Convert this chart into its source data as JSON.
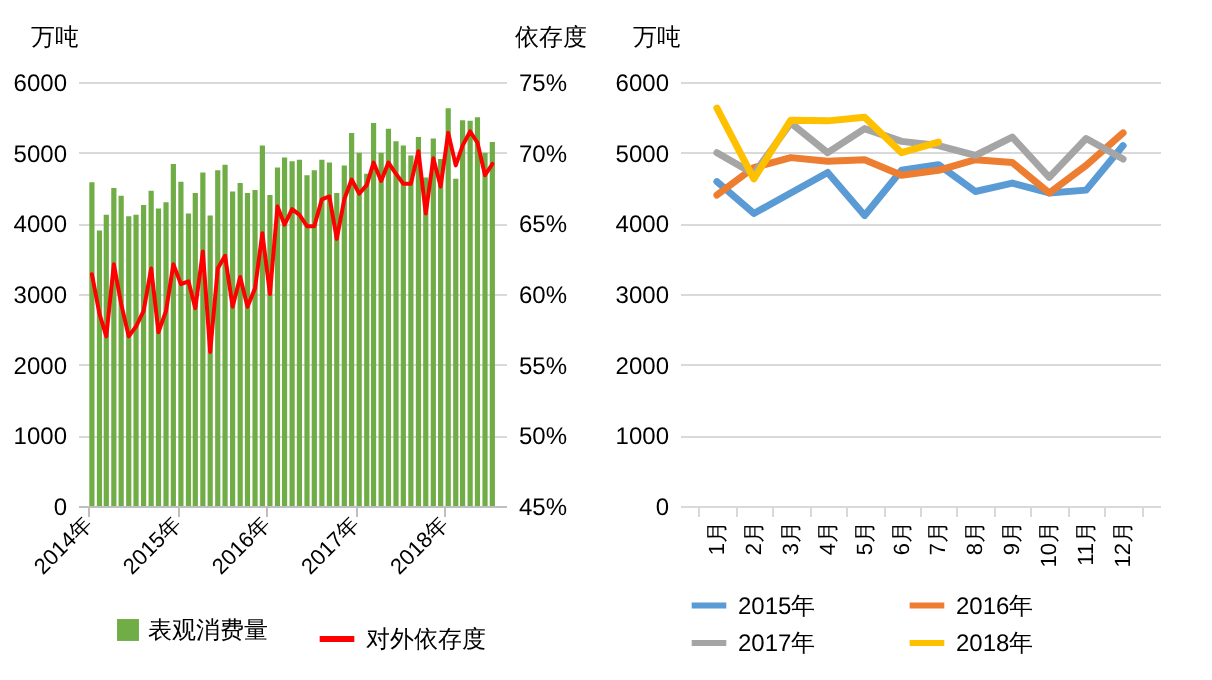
{
  "chart_data": [
    {
      "type": "bar",
      "ylabel": "万吨",
      "y2label": "依存度",
      "grid": "y",
      "legend": "bottom",
      "x": [
        "2014-01",
        "2014-02",
        "2014-03",
        "2014-04",
        "2014-05",
        "2014-06",
        "2014-07",
        "2014-08",
        "2014-09",
        "2014-10",
        "2014-11",
        "2014-12",
        "2015-01",
        "2015-02",
        "2015-03",
        "2015-04",
        "2015-05",
        "2015-06",
        "2015-07",
        "2015-08",
        "2015-09",
        "2015-10",
        "2015-11",
        "2015-12",
        "2016-01",
        "2016-02",
        "2016-03",
        "2016-04",
        "2016-05",
        "2016-06",
        "2016-07",
        "2016-08",
        "2016-09",
        "2016-10",
        "2016-11",
        "2016-12",
        "2017-01",
        "2017-02",
        "2017-03",
        "2017-04",
        "2017-05",
        "2017-06",
        "2017-07",
        "2017-08",
        "2017-09",
        "2017-10",
        "2017-11",
        "2017-12",
        "2018-01",
        "2018-02",
        "2018-03",
        "2018-04",
        "2018-05",
        "2018-06",
        "2018-07"
      ],
      "xlim": [
        "2014-01",
        "2018-08"
      ],
      "xticks": [
        {
          "value": "2014-01",
          "label": "2014年"
        },
        {
          "value": "2015-01",
          "label": "2015年"
        },
        {
          "value": "2016-01",
          "label": "2016年"
        },
        {
          "value": "2017-01",
          "label": "2017年"
        },
        {
          "value": "2018-01",
          "label": "2018年"
        }
      ],
      "ylim": [
        0,
        6000
      ],
      "yticks": [
        0,
        1000,
        2000,
        3000,
        4000,
        5000,
        6000
      ],
      "y2lim": [
        45,
        75
      ],
      "y2ticks": [
        {
          "value": 45,
          "label": "45%"
        },
        {
          "value": 50,
          "label": "50%"
        },
        {
          "value": 55,
          "label": "55%"
        },
        {
          "value": 60,
          "label": "60%"
        },
        {
          "value": 65,
          "label": "65%"
        },
        {
          "value": 70,
          "label": "70%"
        },
        {
          "value": 75,
          "label": "75%"
        }
      ],
      "series": [
        {
          "name": "表观消费量",
          "color": "#70ad47",
          "values": [
            4580,
            3900,
            4120,
            4500,
            4390,
            4100,
            4120,
            4260,
            4460,
            4210,
            4300,
            4840,
            4590,
            4140,
            4430,
            4720,
            4110,
            4750,
            4830,
            4450,
            4570,
            4430,
            4470,
            5100,
            4400,
            4790,
            4930,
            4880,
            4900,
            4680,
            4750,
            4900,
            4860,
            4430,
            4820,
            5280,
            5000,
            4700,
            5420,
            5000,
            5340,
            5160,
            5100,
            4960,
            5220,
            4650,
            5200,
            4910,
            5630,
            4630,
            5460,
            5450,
            5500,
            5000,
            5150
          ]
        },
        {
          "name": "对外依存度",
          "type": "line",
          "axis": "y2",
          "color": "#ff0000",
          "values": [
            61.4,
            58.6,
            57.0,
            62.1,
            59.3,
            57.0,
            57.7,
            58.8,
            61.8,
            57.3,
            58.8,
            62.1,
            60.7,
            60.9,
            59.0,
            63.0,
            55.9,
            61.8,
            62.7,
            59.1,
            61.2,
            59.1,
            60.4,
            64.3,
            60.0,
            66.2,
            64.9,
            66.0,
            65.6,
            64.8,
            64.8,
            66.7,
            66.9,
            63.9,
            66.7,
            68.1,
            67.1,
            67.7,
            69.3,
            68.0,
            69.3,
            68.5,
            67.8,
            67.8,
            70.1,
            65.7,
            69.6,
            67.6,
            71.4,
            69.1,
            70.5,
            71.5,
            70.7,
            68.4,
            69.2
          ]
        }
      ]
    },
    {
      "type": "line",
      "ylabel": "万吨",
      "grid": "y",
      "legend": "bottom",
      "categories": [
        "1月",
        "2月",
        "3月",
        "4月",
        "5月",
        "6月",
        "7月",
        "8月",
        "9月",
        "10月",
        "11月",
        "12月"
      ],
      "ylim": [
        0,
        6000
      ],
      "yticks": [
        0,
        1000,
        2000,
        3000,
        4000,
        5000,
        6000
      ],
      "series": [
        {
          "name": "2015年",
          "color": "#5b9bd5",
          "values": [
            4590,
            4140,
            4430,
            4720,
            4110,
            4750,
            4830,
            4450,
            4570,
            4430,
            4470,
            5100
          ]
        },
        {
          "name": "2016年",
          "color": "#ed7d31",
          "values": [
            4400,
            4790,
            4930,
            4880,
            4900,
            4680,
            4750,
            4900,
            4860,
            4430,
            4820,
            5280
          ]
        },
        {
          "name": "2017年",
          "color": "#a5a5a5",
          "values": [
            5000,
            4700,
            5420,
            5000,
            5340,
            5160,
            5100,
            4960,
            5220,
            4650,
            5200,
            4910
          ]
        },
        {
          "name": "2018年",
          "color": "#ffc000",
          "values": [
            5630,
            4630,
            5460,
            5450,
            5500,
            5000,
            5150,
            null,
            null,
            null,
            null,
            null
          ]
        }
      ]
    }
  ]
}
